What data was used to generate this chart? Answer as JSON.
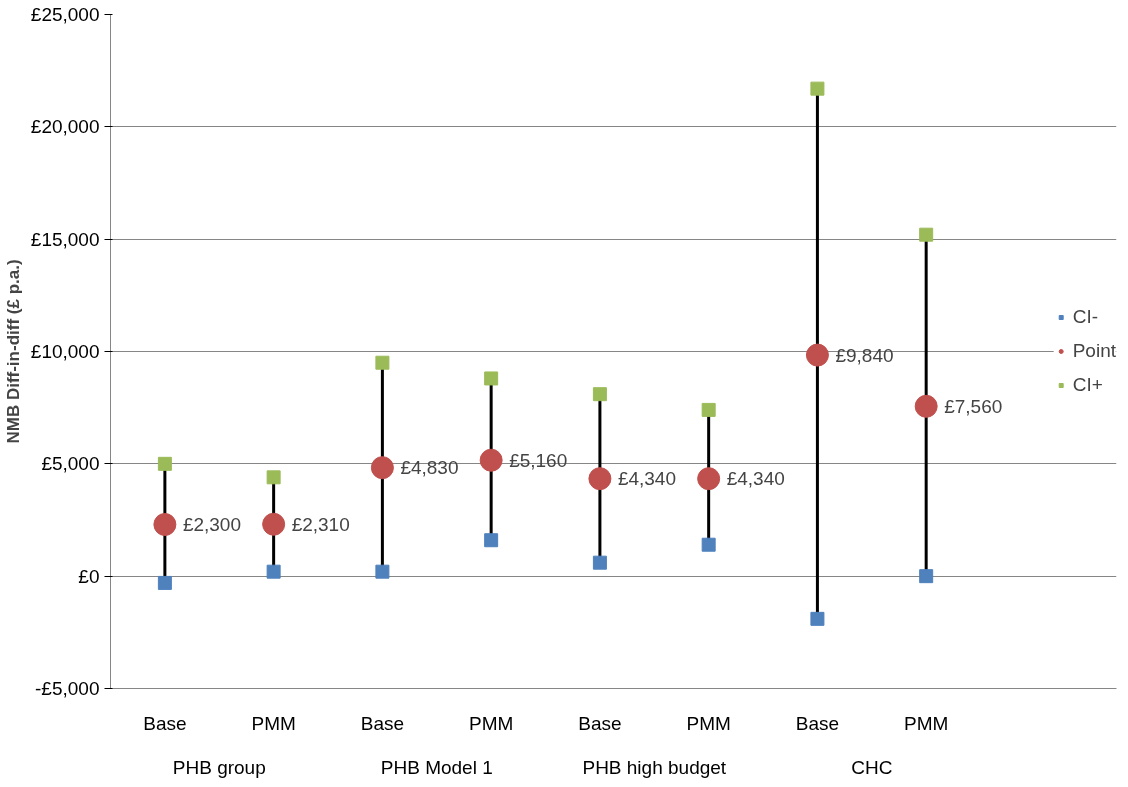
{
  "chart_data": {
    "type": "scatter",
    "ylabel": "NMB Diff-in-diff (£ p.a.)",
    "categories": [
      "Base",
      "PMM",
      "Base",
      "PMM",
      "Base",
      "PMM",
      "Base",
      "PMM"
    ],
    "annotations": [
      "PHB group",
      "PHB Model 1",
      "PHB high budget",
      "CHC"
    ],
    "series": [
      {
        "name": "CI-",
        "color": "#4f81bd",
        "marker": "square",
        "values": [
          -300,
          200,
          200,
          1600,
          600,
          1400,
          -1900,
          0
        ]
      },
      {
        "name": "Point",
        "color": "#c0504d",
        "marker": "circle",
        "values": [
          2300,
          2310,
          4830,
          5160,
          4340,
          4340,
          9840,
          7560
        ],
        "value_labels": [
          "£2,300",
          "£2,310",
          "£4,830",
          "£5,160",
          "£4,340",
          "£4,340",
          "£9,840",
          "£7,560"
        ]
      },
      {
        "name": "CI+",
        "color": "#9bbb59",
        "marker": "square",
        "values": [
          5000,
          4400,
          9500,
          8800,
          8100,
          7400,
          21700,
          15200
        ]
      }
    ],
    "ylim": [
      -5000,
      25000
    ],
    "yticks": [
      {
        "value": -5000,
        "label": "-£5,000"
      },
      {
        "value": 0,
        "label": "£0"
      },
      {
        "value": 5000,
        "label": "£5,000"
      },
      {
        "value": 10000,
        "label": "£10,000"
      },
      {
        "value": 15000,
        "label": "£15,000"
      },
      {
        "value": 20000,
        "label": "£20,000"
      },
      {
        "value": 25000,
        "label": "£25,000"
      }
    ],
    "grid": "y",
    "legend": "right"
  }
}
